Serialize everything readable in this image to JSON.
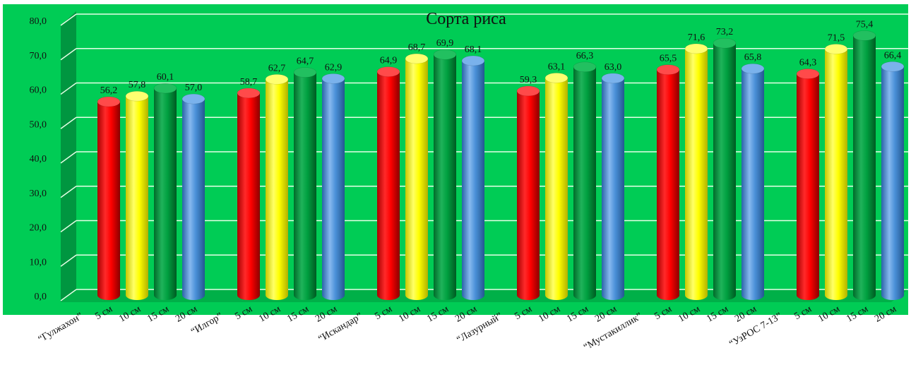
{
  "chart_data": {
    "type": "bar",
    "title": "Сорта риса",
    "ylim": [
      0,
      80
    ],
    "yticks": [
      "0,0",
      "10,0",
      "20,0",
      "30,0",
      "40,0",
      "50,0",
      "60,0",
      "70,0",
      "80,0"
    ],
    "grid": true,
    "legend": "none",
    "series_colors": [
      "#ff0000",
      "#ffff00",
      "#00a040",
      "#4a90d8"
    ],
    "background": "#00cc55",
    "categories": [
      {
        "label": "“Гулжахон”",
        "x_labels": [
          "5 см",
          "10 см",
          "15 см",
          "20 см"
        ],
        "values": [
          56.2,
          57.8,
          60.1,
          57.0
        ],
        "value_labels": [
          "56,2",
          "57,8",
          "60,1",
          "57,0"
        ]
      },
      {
        "label": "“Илгор”",
        "x_labels": [
          "5 см",
          "10 см",
          "15 см",
          "20 см"
        ],
        "values": [
          58.7,
          62.7,
          64.7,
          62.9
        ],
        "value_labels": [
          "58,7",
          "62,7",
          "64,7",
          "62,9"
        ]
      },
      {
        "label": "“Искандар”",
        "x_labels": [
          "5 см",
          "10 см",
          "15 см",
          "20 см"
        ],
        "values": [
          64.9,
          68.7,
          69.9,
          68.1
        ],
        "value_labels": [
          "64,9",
          "68,7",
          "69,9",
          "68,1"
        ]
      },
      {
        "label": "“Лазурный”",
        "x_labels": [
          "5 см",
          "10 см",
          "15 см",
          "20 см"
        ],
        "values": [
          59.3,
          63.1,
          66.3,
          63.0
        ],
        "value_labels": [
          "59,3",
          "63,1",
          "66,3",
          "63,0"
        ]
      },
      {
        "label": "“Мустакиллик”",
        "x_labels": [
          "5 см",
          "10 см",
          "15 см",
          "20 см"
        ],
        "values": [
          65.5,
          71.6,
          73.2,
          65.8
        ],
        "value_labels": [
          "65,5",
          "71,6",
          "73,2",
          "65,8"
        ]
      },
      {
        "label": "“УзРОС 7-13”",
        "x_labels": [
          "5 см",
          "10 см",
          "15 см",
          "20 см"
        ],
        "values": [
          64.3,
          71.5,
          75.4,
          66.4
        ],
        "value_labels": [
          "64,3",
          "71,5",
          "75,4",
          "66,4"
        ]
      }
    ]
  }
}
